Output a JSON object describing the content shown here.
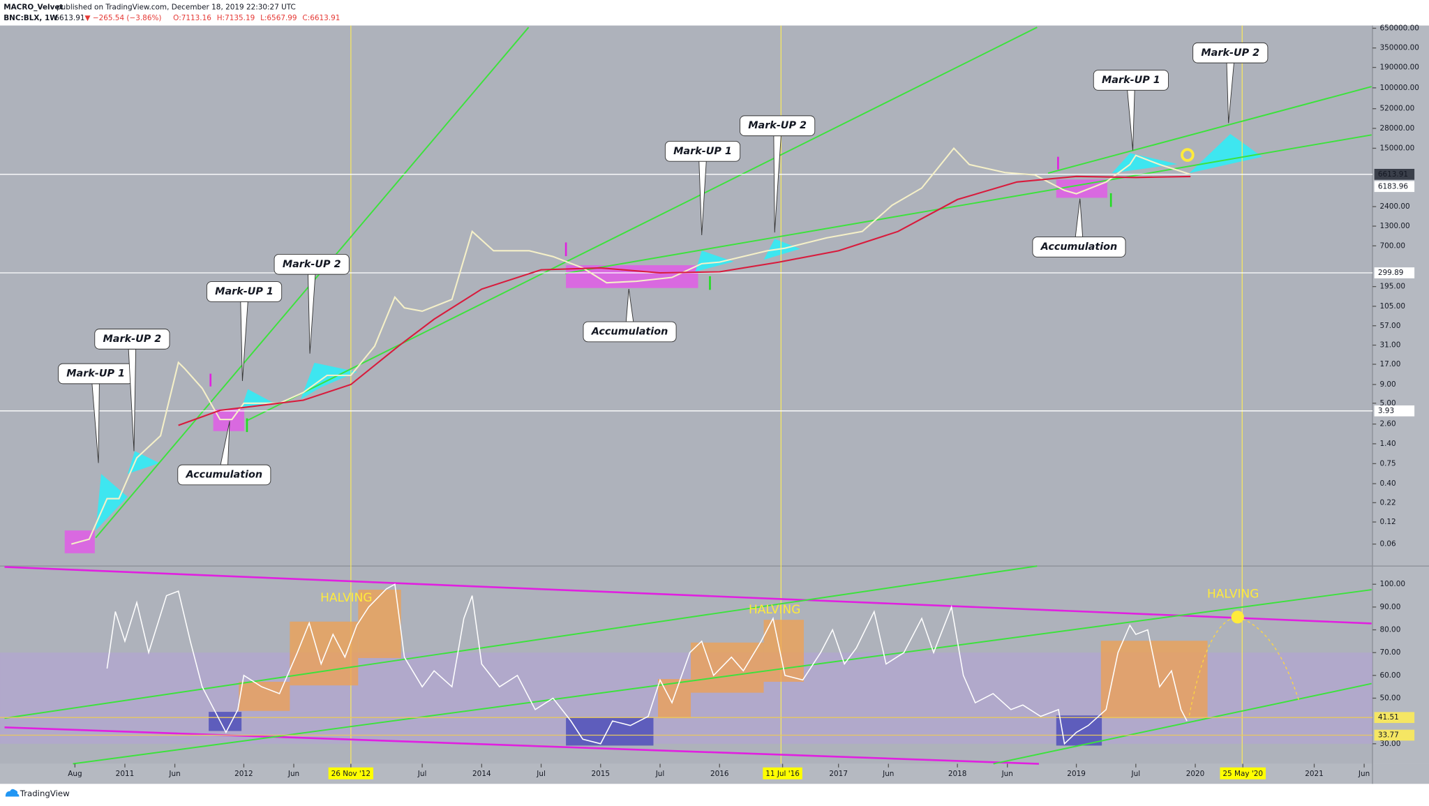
{
  "header": {
    "publisher": "MACRO_Velvet",
    "published": "published on TradingView.com, December 18, 2019 22:30:27 UTC",
    "symbol": "BNC:BLX, 1W",
    "last": "6613.91",
    "change": "▼ −265.54 (−3.86%)",
    "ohlc": [
      "O:7113.16",
      "H:7135.19",
      "L:6567.99",
      "C:6613.91"
    ]
  },
  "footer": "TradingView",
  "chart_data": [
    {
      "type": "line",
      "log_scale": true,
      "xlim": [
        2009.95,
        2021.49
      ],
      "ylim": [
        0.031,
        708000
      ],
      "yticks": [
        {
          "value": 650000,
          "label": "650000.00"
        },
        {
          "value": 350000,
          "label": "350000.00"
        },
        {
          "value": 190000,
          "label": "190000.00"
        },
        {
          "value": 100000,
          "label": "100000.00"
        },
        {
          "value": 52000,
          "label": "52000.00"
        },
        {
          "value": 28000,
          "label": "28000.00"
        },
        {
          "value": 15000,
          "label": "15000.00"
        },
        {
          "value": 2400,
          "label": "2400.00"
        },
        {
          "value": 1300,
          "label": "1300.00"
        },
        {
          "value": 700,
          "label": "700.00"
        },
        {
          "value": 195,
          "label": "195.00"
        },
        {
          "value": 105,
          "label": "105.00"
        },
        {
          "value": 57,
          "label": "57.00"
        },
        {
          "value": 31,
          "label": "31.00"
        },
        {
          "value": 17,
          "label": "17.00"
        },
        {
          "value": 9,
          "label": "9.00"
        },
        {
          "value": 5,
          "label": "5.00"
        },
        {
          "value": 2.6,
          "label": "2.60"
        },
        {
          "value": 1.4,
          "label": "1.40"
        },
        {
          "value": 0.75,
          "label": "0.75"
        },
        {
          "value": 0.4,
          "label": "0.40"
        },
        {
          "value": 0.22,
          "label": "0.22"
        },
        {
          "value": 0.12,
          "label": "0.12"
        },
        {
          "value": 0.06,
          "label": "0.06"
        }
      ],
      "horizontal_lines": [
        6613.91,
        299.89,
        3.93
      ],
      "series": [
        {
          "name": "BNC:BLX",
          "color": "#f5f0c8",
          "x": [
            2010.55,
            2010.7,
            2010.85,
            2010.95,
            2011.1,
            2011.3,
            2011.45,
            2011.5,
            2011.65,
            2011.8,
            2011.9,
            2012.0,
            2012.3,
            2012.5,
            2012.7,
            2012.9,
            2013.1,
            2013.27,
            2013.35,
            2013.5,
            2013.75,
            2013.92,
            2014.1,
            2014.4,
            2014.6,
            2014.85,
            2015.05,
            2015.3,
            2015.6,
            2015.85,
            2016.0,
            2016.4,
            2016.55,
            2016.9,
            2017.2,
            2017.45,
            2017.7,
            2017.97,
            2018.1,
            2018.4,
            2018.65,
            2018.9,
            2019.0,
            2019.25,
            2019.45,
            2019.5,
            2019.7,
            2019.8,
            2019.96
          ],
          "values": [
            0.06,
            0.07,
            0.25,
            0.25,
            0.9,
            1.8,
            18,
            15,
            8,
            3,
            3,
            5,
            5,
            7,
            12,
            12,
            30,
            140,
            100,
            90,
            130,
            1100,
            600,
            600,
            500,
            350,
            220,
            230,
            260,
            400,
            420,
            600,
            650,
            900,
            1100,
            2500,
            4300,
            15000,
            9000,
            7000,
            6500,
            4000,
            3600,
            5200,
            9000,
            12000,
            9000,
            8000,
            6613.91
          ]
        },
        {
          "name": "MA",
          "color": "#d81b3c",
          "x": [
            2011.45,
            2011.8,
            2012.5,
            2012.9,
            2013.3,
            2013.6,
            2014.0,
            2014.5,
            2015.0,
            2015.5,
            2016.0,
            2016.5,
            2017.0,
            2017.5,
            2018.0,
            2018.5,
            2019.0,
            2019.5,
            2019.96
          ],
          "values": [
            2.5,
            4,
            5.5,
            9,
            30,
            70,
            180,
            330,
            350,
            300,
            310,
            420,
            600,
            1100,
            3000,
            5200,
            6200,
            6000,
            6183.96
          ]
        }
      ],
      "annotations": [
        "Mark-UP 1",
        "Mark-UP 2",
        "Mark-UP 1",
        "Mark-UP 2",
        "Accumulation",
        "Accumulation",
        "Mark-UP 1",
        "Mark-UP 2",
        "Accumulation",
        "Mark-UP 1",
        "Mark-UP 2"
      ]
    },
    {
      "type": "line",
      "xlim": [
        2009.95,
        2021.49
      ],
      "ylim": [
        21.2,
        107.6
      ],
      "yticks": [
        {
          "value": 100,
          "label": "100.00"
        },
        {
          "value": 90,
          "label": "90.00"
        },
        {
          "value": 80,
          "label": "80.00"
        },
        {
          "value": 70,
          "label": "70.00"
        },
        {
          "value": 60,
          "label": "60.00"
        },
        {
          "value": 50,
          "label": "50.00"
        },
        {
          "value": 30,
          "label": "30.00"
        }
      ],
      "horizontal_lines": [
        41.51,
        33.77
      ],
      "xticks": [
        {
          "value": 2010.58,
          "label": "Aug"
        },
        2011,
        {
          "value": 2011.42,
          "label": "Jun"
        },
        2012,
        {
          "value": 2012.42,
          "label": "Jun"
        },
        {
          "value": 2012.9,
          "label": "26 Nov '12"
        },
        {
          "value": 2013.5,
          "label": "Jul"
        },
        2014,
        {
          "value": 2014.5,
          "label": "Jul"
        },
        2015,
        {
          "value": 2015.5,
          "label": "Jul"
        },
        2016,
        {
          "value": 2016.53,
          "label": "11 Jul '16"
        },
        2017,
        {
          "value": 2017.42,
          "label": "Jun"
        },
        2018,
        {
          "value": 2018.42,
          "label": "Jun"
        },
        2019,
        {
          "value": 2019.5,
          "label": "Jul"
        },
        2020,
        {
          "value": 2020.4,
          "label": "25 May '20"
        },
        2021,
        {
          "value": 2021.42,
          "label": "Jun"
        }
      ],
      "series": [
        {
          "name": "RSI",
          "color": "#ffffff",
          "x": [
            2010.85,
            2010.92,
            2011.0,
            2011.1,
            2011.2,
            2011.35,
            2011.45,
            2011.55,
            2011.65,
            2011.75,
            2011.85,
            2011.95,
            2012.0,
            2012.15,
            2012.3,
            2012.45,
            2012.55,
            2012.65,
            2012.75,
            2012.85,
            2012.95,
            2013.05,
            2013.2,
            2013.27,
            2013.35,
            2013.5,
            2013.6,
            2013.75,
            2013.85,
            2013.92,
            2014.0,
            2014.15,
            2014.3,
            2014.45,
            2014.6,
            2014.75,
            2014.85,
            2015.0,
            2015.1,
            2015.25,
            2015.4,
            2015.5,
            2015.6,
            2015.75,
            2015.85,
            2015.95,
            2016.1,
            2016.2,
            2016.35,
            2016.45,
            2016.55,
            2016.7,
            2016.85,
            2016.95,
            2017.05,
            2017.15,
            2017.3,
            2017.4,
            2017.55,
            2017.7,
            2017.8,
            2017.95,
            2018.05,
            2018.15,
            2018.3,
            2018.45,
            2018.55,
            2018.7,
            2018.85,
            2018.9,
            2019.0,
            2019.1,
            2019.25,
            2019.35,
            2019.45,
            2019.5,
            2019.6,
            2019.7,
            2019.8,
            2019.88,
            2019.93
          ],
          "values": [
            63,
            88,
            75,
            92,
            70,
            95,
            97,
            75,
            55,
            45,
            35,
            45,
            60,
            55,
            52,
            70,
            83,
            65,
            78,
            68,
            82,
            90,
            98,
            100,
            68,
            55,
            62,
            55,
            85,
            95,
            65,
            55,
            60,
            45,
            50,
            40,
            32,
            30,
            40,
            38,
            42,
            58,
            48,
            70,
            75,
            60,
            68,
            62,
            75,
            85,
            60,
            58,
            70,
            80,
            65,
            72,
            88,
            65,
            70,
            85,
            70,
            90,
            60,
            48,
            52,
            45,
            47,
            42,
            45,
            30,
            35,
            38,
            45,
            70,
            82,
            78,
            80,
            55,
            62,
            45,
            40
          ]
        }
      ],
      "annotations": [
        "HALVING",
        "HALVING",
        "HALVING"
      ]
    }
  ]
}
